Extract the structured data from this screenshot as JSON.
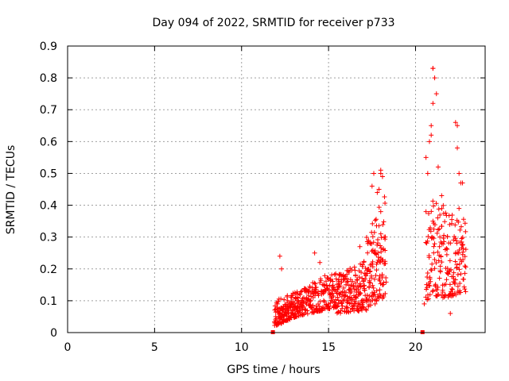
{
  "chart_data": {
    "type": "scatter",
    "title": "Day 094 of 2022, SRMTID for receiver p733",
    "xlabel": "GPS time / hours",
    "ylabel": "SRMTID / TECUs",
    "xlim": [
      0,
      24
    ],
    "ylim": [
      0,
      0.9
    ],
    "grid": true,
    "marker": "+",
    "color": "#ff0000",
    "xticks": [
      0,
      5,
      10,
      15,
      20
    ],
    "xtick_labels": [
      "0",
      "5",
      "10",
      "15",
      "20"
    ],
    "yticks": [
      0,
      0.1,
      0.2,
      0.3,
      0.4,
      0.5,
      0.6,
      0.7,
      0.8,
      0.9
    ],
    "ytick_labels": [
      "0",
      "0.1",
      "0.2",
      "0.3",
      "0.4",
      "0.5",
      "0.6",
      "0.7",
      "0.8",
      "0.9"
    ],
    "zero_markers": {
      "x": [
        11.8,
        20.4
      ],
      "y": [
        0,
        0
      ]
    },
    "clusters": [
      {
        "name": "early",
        "x": [
          11.9,
          13.2
        ],
        "y_low": [
          0.02,
          0.05
        ],
        "y_high": [
          0.1,
          0.13
        ],
        "count": 150,
        "seed": 11
      },
      {
        "name": "rise",
        "x": [
          13.2,
          15.5
        ],
        "y_low": [
          0.05,
          0.08
        ],
        "y_high": [
          0.13,
          0.2
        ],
        "count": 210,
        "seed": 23
      },
      {
        "name": "mid",
        "x": [
          15.5,
          17.2
        ],
        "y_low": [
          0.06,
          0.07
        ],
        "y_high": [
          0.18,
          0.23
        ],
        "count": 180,
        "seed": 37
      },
      {
        "name": "late",
        "x": [
          17.2,
          18.3
        ],
        "y_low": [
          0.08,
          0.1
        ],
        "y_high": [
          0.3,
          0.45
        ],
        "count": 120,
        "seed": 41
      },
      {
        "name": "second_pass",
        "x": [
          20.6,
          22.9
        ],
        "y_low": [
          0.1,
          0.12
        ],
        "y_high": [
          0.45,
          0.35
        ],
        "count": 200,
        "seed": 53
      }
    ],
    "highlight_points": {
      "x": [
        12.2,
        12.3,
        14.2,
        14.5,
        16.8,
        17.5,
        17.6,
        17.8,
        17.9,
        18.0,
        18.0,
        18.1,
        18.0,
        18.2,
        20.6,
        20.7,
        20.8,
        20.9,
        20.9,
        21.0,
        21.0,
        21.1,
        21.0,
        21.2,
        21.3,
        21.5,
        22.3,
        22.4,
        22.4,
        22.5,
        22.6,
        22.7,
        22.5,
        20.5,
        20.6,
        21.0,
        21.4,
        21.5,
        22.0
      ],
      "y": [
        0.24,
        0.2,
        0.25,
        0.22,
        0.27,
        0.46,
        0.5,
        0.44,
        0.45,
        0.5,
        0.51,
        0.49,
        0.38,
        0.3,
        0.55,
        0.5,
        0.6,
        0.65,
        0.62,
        0.83,
        0.83,
        0.8,
        0.72,
        0.75,
        0.52,
        0.43,
        0.66,
        0.65,
        0.58,
        0.5,
        0.47,
        0.47,
        0.39,
        0.09,
        0.38,
        0.35,
        0.3,
        0.28,
        0.06
      ]
    }
  }
}
